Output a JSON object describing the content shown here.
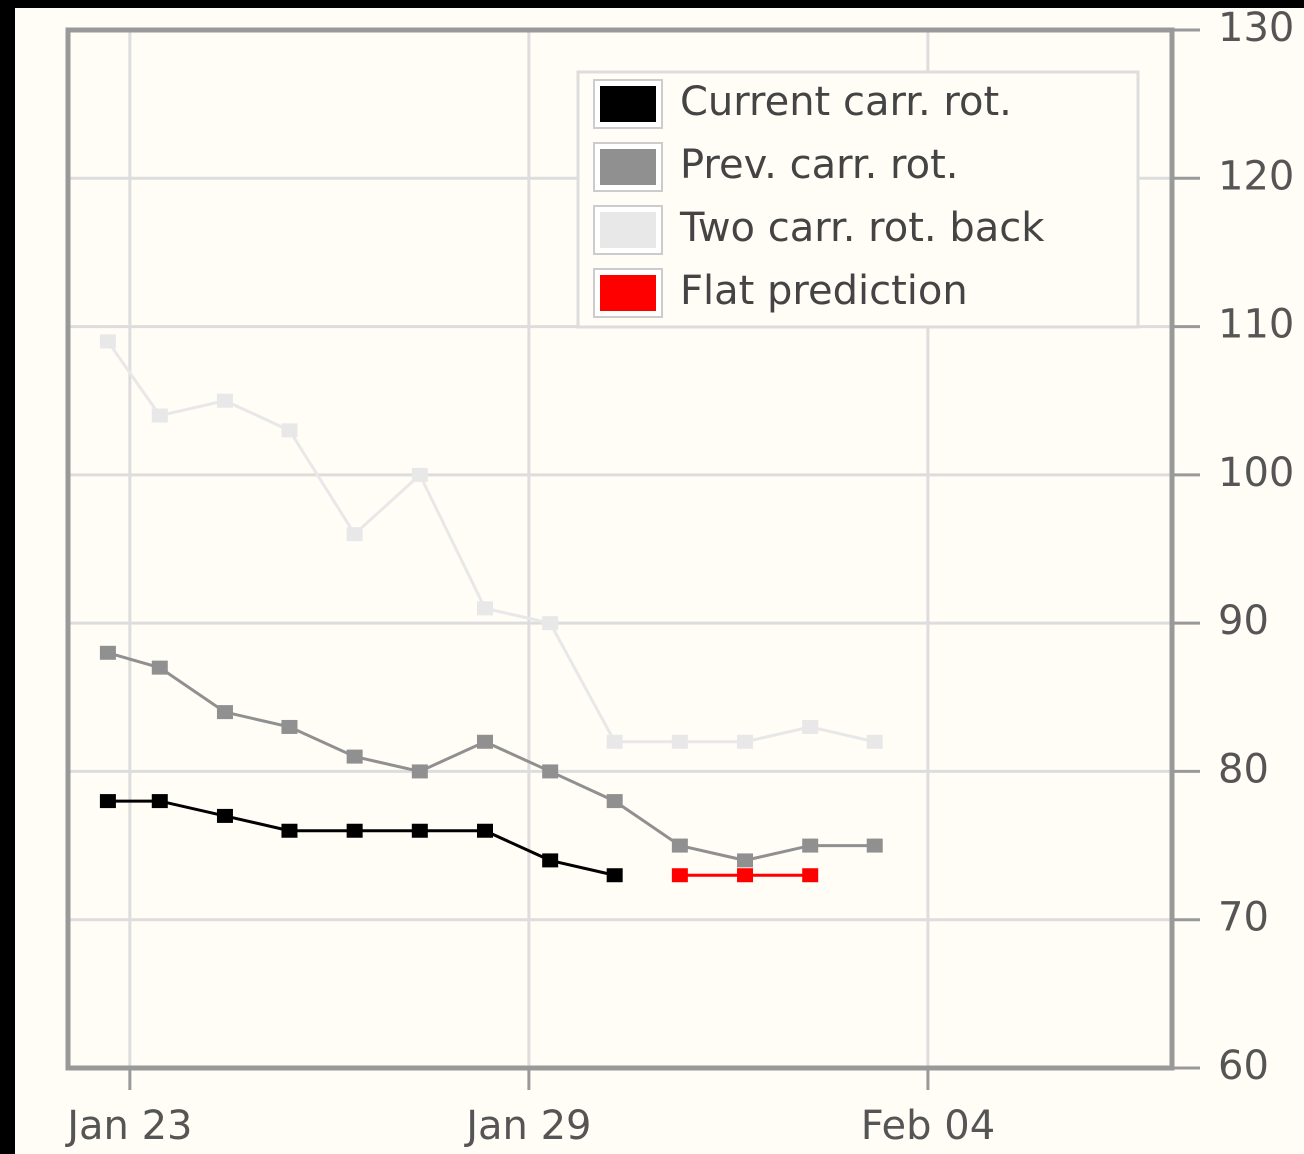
{
  "chart_data": {
    "type": "line",
    "x": [
      -0.33,
      0.45,
      1.43,
      2.4,
      3.38,
      4.36,
      5.34,
      6.32,
      7.29,
      8.27,
      9.25,
      10.23,
      11.2
    ],
    "series": [
      {
        "name": "Current carr. rot.",
        "color": "#000000",
        "values": [
          78,
          78,
          77,
          76,
          76,
          76,
          76,
          74,
          73,
          null,
          null,
          null,
          null
        ]
      },
      {
        "name": "Prev. carr. rot.",
        "color": "#909090",
        "values": [
          88,
          87,
          84,
          83,
          81,
          80,
          82,
          80,
          78,
          75,
          74,
          75,
          75
        ]
      },
      {
        "name": "Two carr. rot. back",
        "color": "#e8e8e8",
        "values": [
          109,
          104,
          105,
          103,
          96,
          100,
          91,
          90,
          82,
          82,
          82,
          83,
          82
        ]
      },
      {
        "name": "Flat prediction",
        "color": "#ff0000",
        "values": [
          null,
          null,
          null,
          null,
          null,
          null,
          null,
          null,
          null,
          73,
          73,
          73,
          null
        ]
      }
    ],
    "xlim": [
      -0.93,
      15.67
    ],
    "xticks": [
      {
        "value": 0,
        "label": "Jan 23"
      },
      {
        "value": 6,
        "label": "Jan 29"
      },
      {
        "value": 12,
        "label": "Feb 04"
      }
    ],
    "ylim": [
      60,
      130
    ],
    "yticks": [
      60,
      70,
      80,
      90,
      100,
      110,
      120,
      130
    ],
    "grid": true,
    "legend": "top-right"
  }
}
